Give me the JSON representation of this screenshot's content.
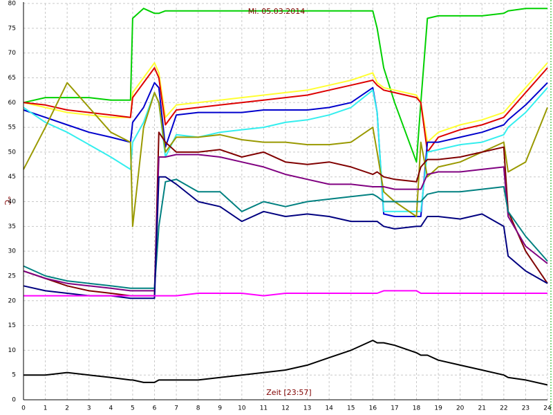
{
  "chart_data": {
    "type": "line",
    "title": "Mi. 05.03.2014",
    "x_label": "Zeit [23:57]",
    "y_label": "°C",
    "xlim": [
      0,
      24
    ],
    "xticks": [
      0,
      1,
      2,
      3,
      4,
      5,
      6,
      7,
      8,
      9,
      10,
      11,
      12,
      13,
      14,
      15,
      16,
      17,
      18,
      19,
      20,
      21,
      22,
      23,
      24
    ],
    "ylim": [
      0,
      80
    ],
    "yticks": [
      0,
      5,
      10,
      15,
      20,
      25,
      30,
      35,
      40,
      45,
      50,
      55,
      60,
      65,
      70,
      75,
      80
    ],
    "grid": true,
    "x": [
      0,
      1,
      2,
      3,
      4,
      4.9,
      5,
      5.5,
      6,
      6.2,
      6.5,
      7,
      8,
      9,
      10,
      11,
      12,
      13,
      14,
      15,
      16,
      16.2,
      16.5,
      17,
      18,
      18.2,
      18.5,
      19,
      20,
      21,
      22,
      22.2,
      23,
      24
    ],
    "series": [
      {
        "color": "#00d000",
        "values": [
          60,
          61,
          61,
          61,
          60.5,
          60.5,
          77,
          79,
          78,
          78,
          78.5,
          78.5,
          78.5,
          78.5,
          78.5,
          78.5,
          78.5,
          78.5,
          78.5,
          78.5,
          78.5,
          75,
          67,
          60,
          48,
          60,
          77,
          77.5,
          77.5,
          77.5,
          78,
          78.5,
          79,
          79
        ]
      },
      {
        "color": "#ffff33",
        "values": [
          60,
          59,
          58,
          57.5,
          57,
          57,
          62,
          65,
          68,
          66,
          57,
          59.5,
          60,
          60.5,
          61,
          61.5,
          62,
          62.5,
          63.5,
          64.5,
          66,
          64,
          63,
          62.5,
          61.5,
          60,
          52,
          54,
          55.5,
          56.5,
          58,
          59,
          63,
          68
        ]
      },
      {
        "color": "#dd0000",
        "values": [
          60,
          59.5,
          58.5,
          58,
          57.5,
          57,
          61,
          64,
          67,
          65,
          55.5,
          58.5,
          59,
          59.5,
          60,
          60.5,
          61,
          61.5,
          62.5,
          63.5,
          64.5,
          63.5,
          62.5,
          62,
          61,
          60,
          50,
          53,
          54.5,
          55.5,
          57,
          58,
          62,
          67
        ]
      },
      {
        "color": "#0000cc",
        "values": [
          58.5,
          57,
          55.5,
          54,
          53,
          52,
          56,
          59,
          64,
          63,
          51,
          57.5,
          58,
          58,
          58,
          58.5,
          58.5,
          58.5,
          59,
          60,
          63,
          58,
          37.5,
          37,
          37,
          37,
          52,
          52,
          53,
          54,
          55.5,
          56.5,
          59.5,
          64
        ]
      },
      {
        "color": "#33eeee",
        "values": [
          59,
          56,
          54,
          51.5,
          49,
          46.5,
          52,
          56,
          62,
          60,
          49,
          53.5,
          53,
          54,
          54.5,
          55,
          56,
          56.5,
          57.5,
          59,
          62.5,
          58,
          38,
          38,
          38,
          38,
          50,
          50.5,
          51.5,
          52,
          53.5,
          55,
          58,
          63
        ]
      },
      {
        "color": "#999900",
        "values": [
          46.5,
          55,
          64,
          59,
          54,
          52,
          35,
          55,
          62,
          60,
          50,
          53,
          53,
          53.5,
          52.5,
          52,
          52,
          51.5,
          51.5,
          52,
          55,
          50,
          42,
          40,
          37,
          52,
          45,
          47,
          48,
          50,
          52,
          46,
          48,
          59
        ]
      },
      {
        "color": "#800000",
        "values": [
          26,
          24.5,
          23,
          22,
          21.5,
          21,
          21,
          21,
          21,
          54,
          52,
          50,
          50,
          50.5,
          49,
          50,
          48,
          47.5,
          48,
          47,
          45.5,
          46,
          45,
          44.5,
          44,
          47,
          48.5,
          48.5,
          49,
          50,
          51,
          38,
          30,
          23.5
        ]
      },
      {
        "color": "#800080",
        "values": [
          26,
          24.5,
          23.5,
          23,
          22.5,
          22,
          22,
          22,
          22,
          49,
          49,
          49.5,
          49.5,
          49,
          48,
          47,
          45.5,
          44.5,
          43.5,
          43.5,
          43,
          43,
          43,
          42.5,
          42.5,
          42.5,
          45.5,
          46,
          46,
          46.5,
          47,
          37,
          31,
          27.5
        ]
      },
      {
        "color": "#008080",
        "values": [
          27,
          25,
          24,
          23.5,
          23,
          22.5,
          22.5,
          22.5,
          22.5,
          35,
          44,
          44.5,
          42,
          42,
          38,
          40,
          39,
          40,
          40.5,
          41,
          41.5,
          41,
          40,
          40,
          40,
          40,
          41.5,
          42,
          42,
          42.5,
          43,
          38,
          33,
          28
        ]
      },
      {
        "color": "#000080",
        "values": [
          23,
          22,
          21.5,
          21,
          21,
          20.5,
          20.5,
          20.5,
          20.5,
          45,
          45,
          43.5,
          40,
          39,
          36,
          38,
          37,
          37.5,
          37,
          36,
          36,
          36,
          35,
          34.5,
          35,
          35,
          37,
          37,
          36.5,
          37.5,
          35,
          29,
          26,
          23.5
        ]
      },
      {
        "color": "#ff00ff",
        "values": [
          21,
          21,
          21,
          21,
          21,
          21,
          21,
          21,
          21,
          21,
          21,
          21,
          21.5,
          21.5,
          21.5,
          21,
          21.5,
          21.5,
          21.5,
          21.5,
          21.5,
          21.5,
          22,
          22,
          22,
          21.5,
          21.5,
          21.5,
          21.5,
          21.5,
          21.5,
          21.5,
          21.5,
          21.5
        ]
      },
      {
        "color": "#000000",
        "values": [
          5,
          5,
          5.5,
          5,
          4.5,
          4,
          4,
          3.5,
          3.5,
          4,
          4,
          4,
          4,
          4.5,
          5,
          5.5,
          6,
          7,
          8.5,
          10,
          12,
          11.5,
          11.5,
          11,
          9.5,
          9,
          9,
          8,
          7,
          6,
          5,
          4.5,
          4,
          3
        ]
      }
    ]
  }
}
